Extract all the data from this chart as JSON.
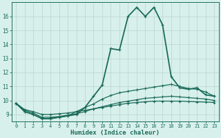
{
  "xlabel": "Humidex (Indice chaleur)",
  "bg_color": "#d8f0ec",
  "grid_color": "#c0d8d4",
  "line_color": "#1a6b5a",
  "xlim": [
    -0.5,
    23.5
  ],
  "ylim": [
    8.5,
    17.0
  ],
  "yticks": [
    9,
    10,
    11,
    12,
    13,
    14,
    15,
    16
  ],
  "xticks": [
    0,
    1,
    2,
    3,
    4,
    5,
    6,
    7,
    8,
    9,
    10,
    11,
    12,
    13,
    14,
    15,
    16,
    17,
    18,
    19,
    20,
    21,
    22,
    23
  ],
  "series": [
    [
      9.8,
      9.2,
      9.0,
      8.7,
      8.7,
      8.8,
      8.9,
      9.0,
      9.5,
      10.3,
      11.1,
      13.7,
      13.6,
      16.0,
      16.65,
      16.0,
      16.65,
      15.4,
      11.7,
      10.9,
      10.8,
      10.9,
      10.4,
      10.3
    ],
    [
      9.8,
      9.2,
      9.0,
      8.7,
      8.7,
      8.8,
      8.9,
      9.2,
      9.5,
      9.75,
      10.1,
      10.35,
      10.55,
      10.65,
      10.75,
      10.85,
      10.95,
      11.05,
      11.15,
      11.0,
      10.85,
      10.8,
      10.6,
      10.3
    ],
    [
      9.8,
      9.3,
      9.1,
      8.8,
      8.8,
      8.85,
      8.95,
      9.05,
      9.2,
      9.4,
      9.55,
      9.7,
      9.85,
      9.95,
      10.05,
      10.15,
      10.2,
      10.25,
      10.3,
      10.25,
      10.2,
      10.15,
      10.1,
      10.0
    ],
    [
      9.8,
      9.35,
      9.2,
      9.0,
      9.0,
      9.05,
      9.1,
      9.2,
      9.3,
      9.4,
      9.5,
      9.6,
      9.7,
      9.8,
      9.85,
      9.9,
      9.95,
      9.95,
      9.95,
      9.95,
      9.92,
      9.9,
      9.88,
      9.85
    ]
  ]
}
